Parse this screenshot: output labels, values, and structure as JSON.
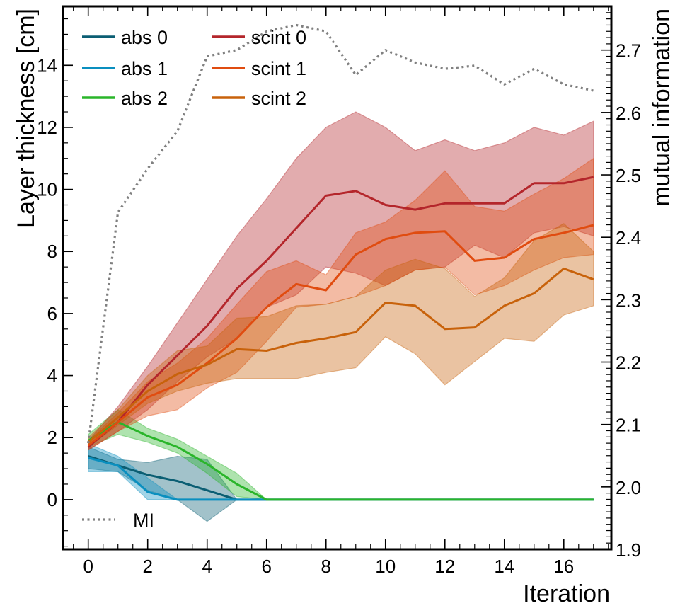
{
  "chart_data": {
    "type": "line",
    "xlabel": "Iteration",
    "ylabel": "Layer thickness [cm]",
    "y2label": "mutual information",
    "xlim": [
      -0.85,
      17.6
    ],
    "ylim": [
      -1.6,
      15.9
    ],
    "y2lim": [
      1.9,
      2.77
    ],
    "xticks": [
      0,
      2,
      4,
      6,
      8,
      10,
      12,
      14,
      16
    ],
    "yticks": [
      0,
      2,
      4,
      6,
      8,
      10,
      12,
      14
    ],
    "y2ticks": [
      1.9,
      2.0,
      2.1,
      2.2,
      2.3,
      2.4,
      2.5,
      2.6,
      2.7
    ],
    "x": [
      0,
      1,
      2,
      3,
      4,
      5,
      6,
      7,
      8,
      9,
      10,
      11,
      12,
      13,
      14,
      15,
      16,
      17
    ],
    "series": [
      {
        "name": "abs 0",
        "color": "#0b5e73",
        "values": [
          1.4,
          1.1,
          0.8,
          0.6,
          0.3,
          0.0,
          0,
          0,
          0,
          0,
          0,
          0,
          0,
          0,
          0,
          0,
          0,
          0
        ],
        "lower": [
          1.0,
          0.9,
          0.3,
          0.0,
          -0.7,
          0.0,
          0,
          0,
          0,
          0,
          0,
          0,
          0,
          0,
          0,
          0,
          0,
          0
        ],
        "upper": [
          1.7,
          1.3,
          1.2,
          1.4,
          1.3,
          0.0,
          0,
          0,
          0,
          0,
          0,
          0,
          0,
          0,
          0,
          0,
          0,
          0
        ]
      },
      {
        "name": "abs 1",
        "color": "#0a8fbf",
        "values": [
          1.35,
          1.1,
          0.25,
          0.0,
          0.0,
          0.0,
          0,
          0,
          0,
          0,
          0,
          0,
          0,
          0,
          0,
          0,
          0,
          0
        ],
        "lower": [
          0.9,
          0.9,
          0.0,
          0.0,
          0.0,
          0.0,
          0,
          0,
          0,
          0,
          0,
          0,
          0,
          0,
          0,
          0,
          0,
          0
        ],
        "upper": [
          1.8,
          1.4,
          0.7,
          0.0,
          0.0,
          0.0,
          0,
          0,
          0,
          0,
          0,
          0,
          0,
          0,
          0,
          0,
          0,
          0
        ]
      },
      {
        "name": "abs 2",
        "color": "#2ab52a",
        "values": [
          1.9,
          2.5,
          2.05,
          1.7,
          1.15,
          0.5,
          0.0,
          0,
          0,
          0,
          0,
          0,
          0,
          0,
          0,
          0,
          0,
          0
        ],
        "lower": [
          1.7,
          2.1,
          1.85,
          1.5,
          0.85,
          0.1,
          0.0,
          0,
          0,
          0,
          0,
          0,
          0,
          0,
          0,
          0,
          0,
          0
        ],
        "upper": [
          2.1,
          2.9,
          2.3,
          1.95,
          1.4,
          0.85,
          0.0,
          0,
          0,
          0,
          0,
          0,
          0,
          0,
          0,
          0,
          0,
          0
        ]
      },
      {
        "name": "scint 0",
        "color": "#b4262b",
        "values": [
          1.7,
          2.5,
          3.7,
          4.65,
          5.6,
          6.8,
          7.7,
          8.75,
          9.8,
          9.95,
          9.5,
          9.35,
          9.55,
          9.55,
          9.55,
          10.2,
          10.2,
          10.4
        ],
        "lower": [
          1.6,
          2.2,
          2.9,
          3.8,
          4.6,
          5.2,
          6.2,
          6.6,
          7.5,
          7.3,
          6.9,
          7.4,
          7.5,
          8.2,
          7.8,
          8.6,
          8.8,
          8.5
        ],
        "upper": [
          1.9,
          3.0,
          4.3,
          5.7,
          7.1,
          8.5,
          9.7,
          11.0,
          12.0,
          12.5,
          12.0,
          11.25,
          11.6,
          11.25,
          11.5,
          12.0,
          11.75,
          12.2
        ]
      },
      {
        "name": "scint 1",
        "color": "#e04c10",
        "values": [
          1.75,
          2.5,
          3.3,
          3.7,
          4.4,
          5.2,
          6.2,
          6.95,
          6.75,
          7.9,
          8.4,
          8.6,
          8.65,
          7.7,
          7.8,
          8.4,
          8.6,
          8.85
        ],
        "lower": [
          1.6,
          2.2,
          2.7,
          2.9,
          3.6,
          4.1,
          5.1,
          6.2,
          6.3,
          6.55,
          6.9,
          7.4,
          7.5,
          6.6,
          6.9,
          7.4,
          7.8,
          7.9
        ],
        "upper": [
          1.9,
          2.8,
          3.8,
          4.4,
          5.2,
          6.3,
          7.35,
          7.7,
          7.25,
          8.6,
          8.95,
          9.65,
          10.6,
          9.45,
          9.3,
          9.85,
          10.35,
          11.0
        ]
      },
      {
        "name": "scint 2",
        "color": "#c8620b",
        "values": [
          1.85,
          2.65,
          3.5,
          4.05,
          4.35,
          4.85,
          4.8,
          5.05,
          5.2,
          5.4,
          6.35,
          6.25,
          5.5,
          5.55,
          6.25,
          6.65,
          7.45,
          7.1
        ],
        "lower": [
          1.7,
          2.4,
          3.1,
          3.5,
          3.75,
          3.9,
          3.9,
          3.9,
          4.1,
          4.25,
          5.25,
          4.7,
          3.7,
          4.45,
          5.2,
          5.1,
          5.95,
          6.25
        ],
        "upper": [
          2.0,
          2.9,
          4.0,
          4.8,
          4.95,
          5.85,
          5.9,
          6.25,
          6.3,
          6.55,
          7.4,
          7.75,
          7.45,
          6.55,
          7.15,
          8.35,
          8.9,
          8.0
        ]
      },
      {
        "name": "MI",
        "color": "#808080",
        "axis": "right",
        "style": "dotted",
        "values": [
          2.07,
          2.44,
          2.51,
          2.57,
          2.69,
          2.7,
          2.73,
          2.74,
          2.73,
          2.66,
          2.7,
          2.68,
          2.67,
          2.675,
          2.645,
          2.67,
          2.645,
          2.635
        ]
      }
    ]
  }
}
